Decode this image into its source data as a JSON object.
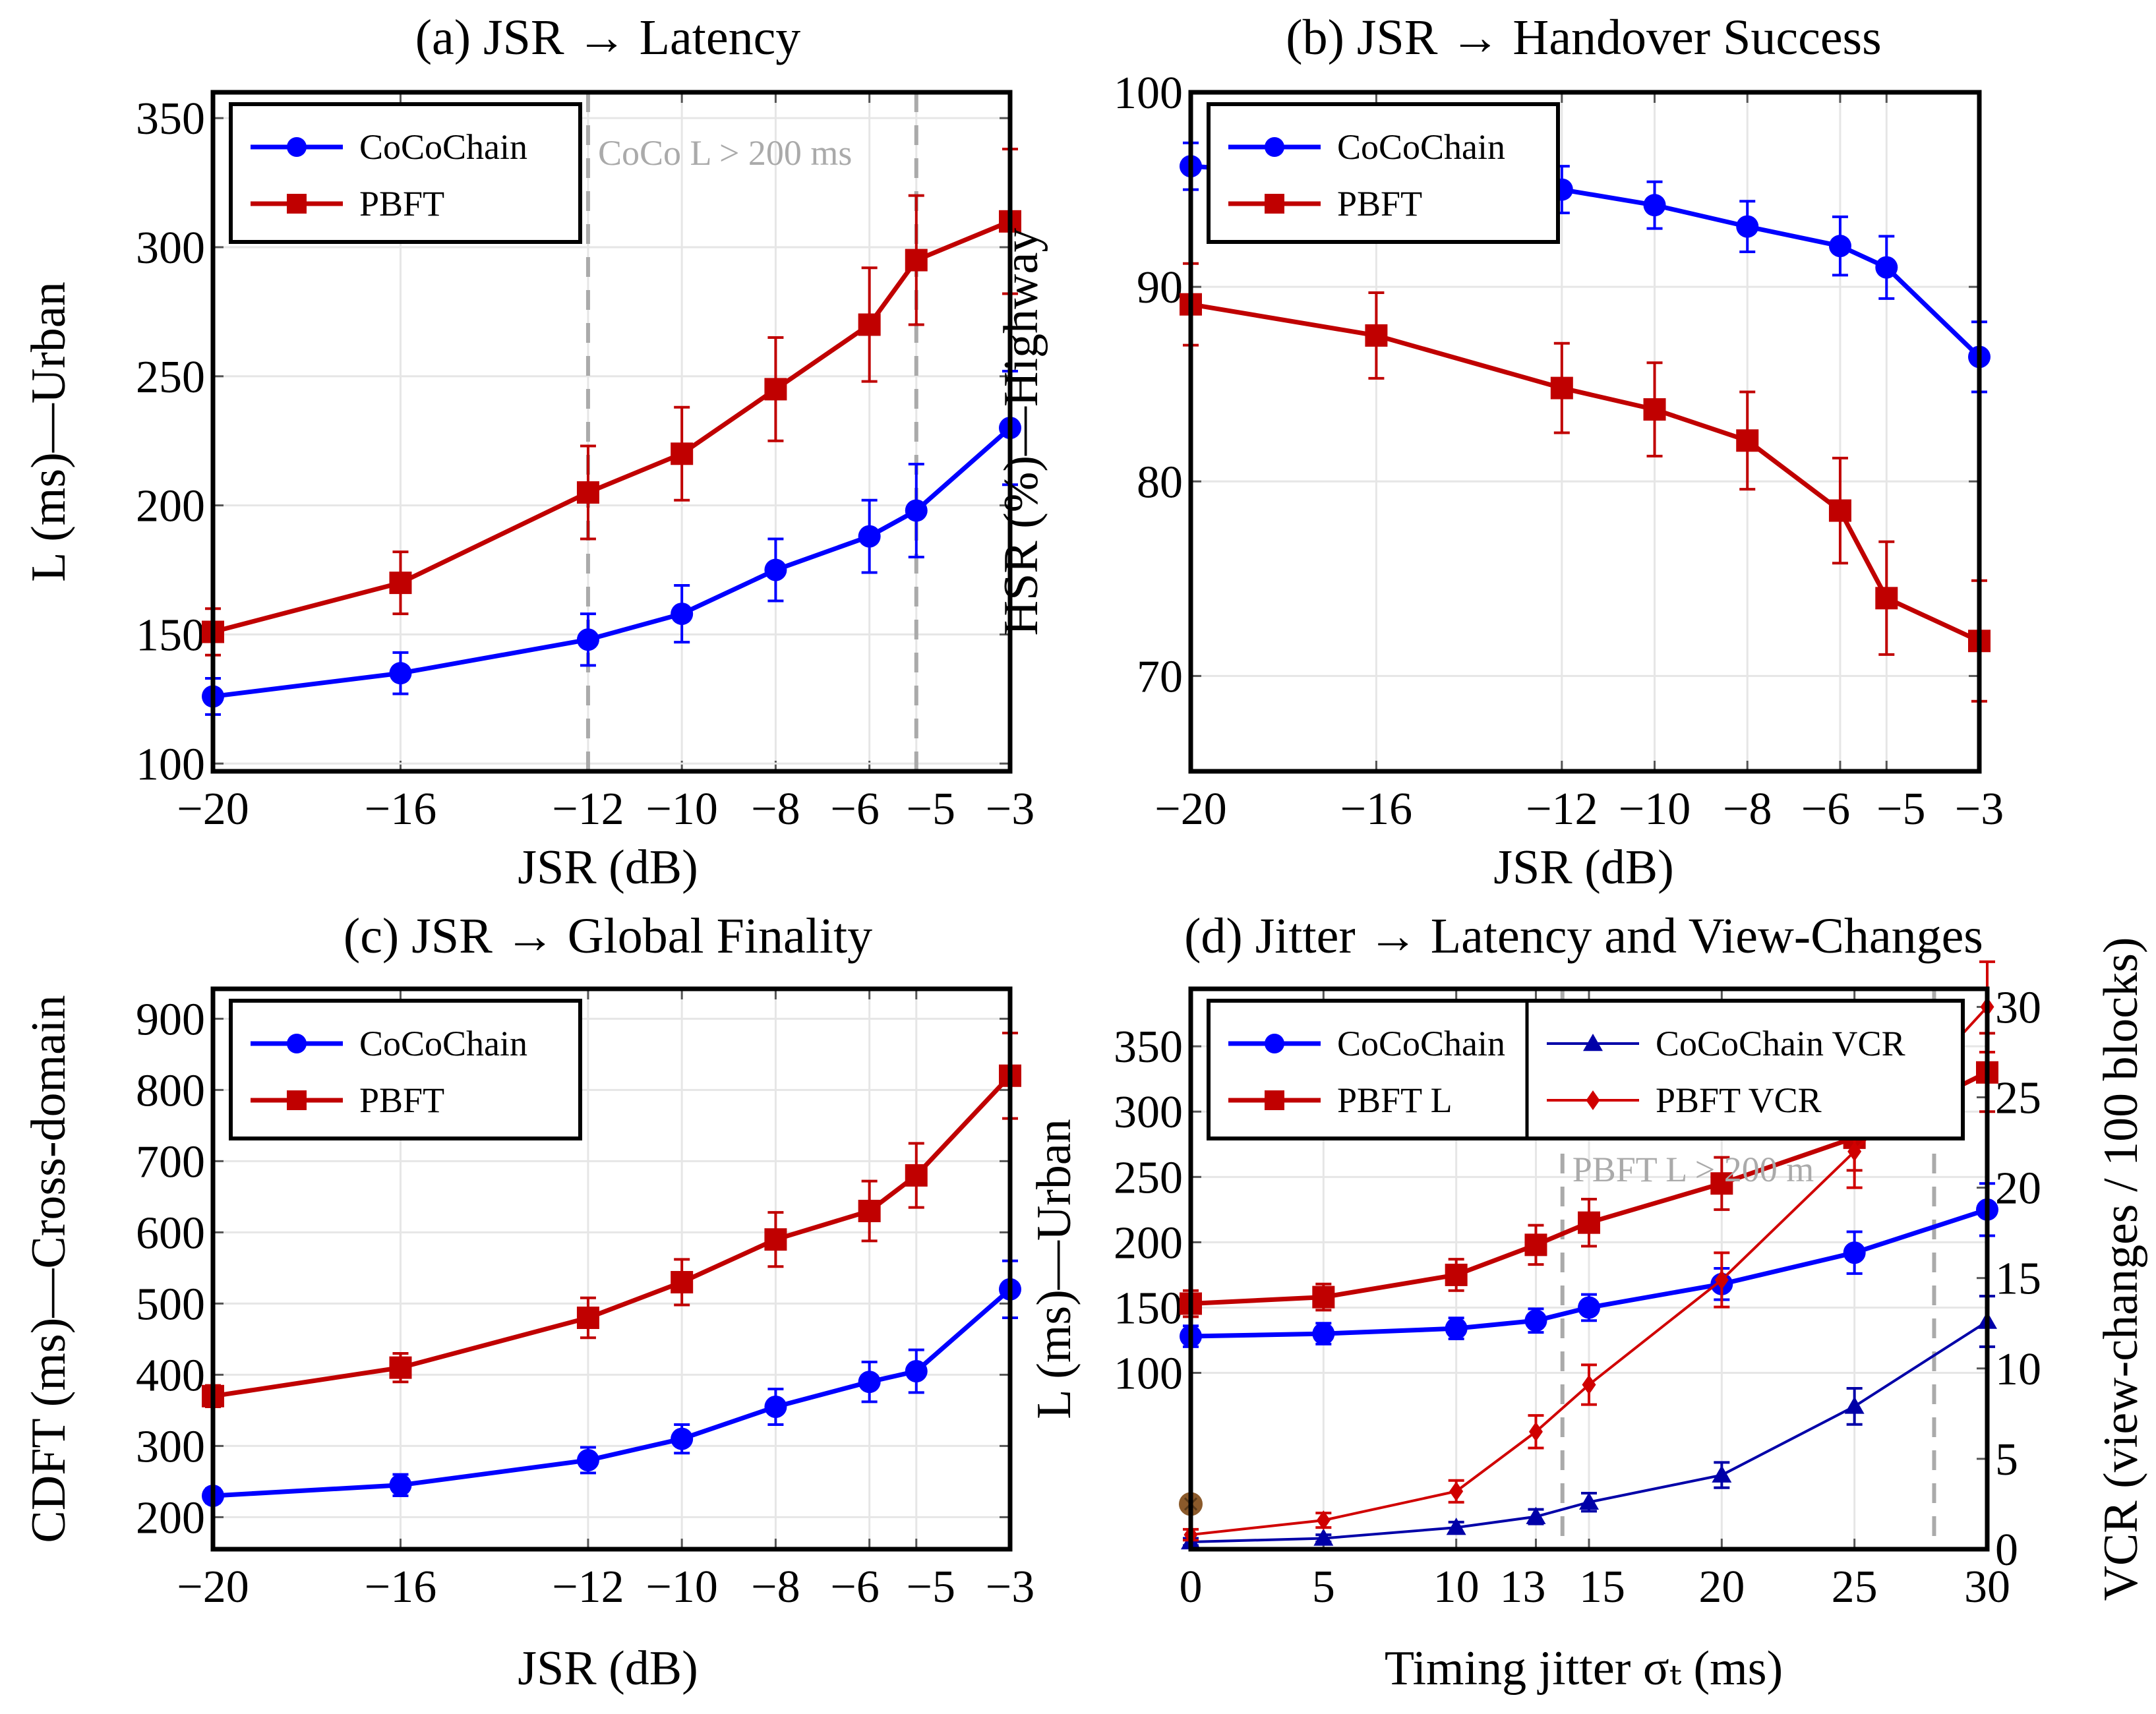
{
  "colors": {
    "coco": "#0000ff",
    "pbft": "#c00000",
    "coco_vcr": "#0000a8",
    "pbft_vcr": "#d00000",
    "grid": "#e6e6e6",
    "dash": "#aaaaaa",
    "marker_extra": "#8b5a2b"
  },
  "chart_data": [
    {
      "type": "line",
      "title": "(a) JSR → Latency",
      "xlabel": "JSR (dB)",
      "ylabel": "L (ms)—Urban",
      "xlim": [
        -20,
        -3
      ],
      "ylim": [
        97,
        360
      ],
      "xticks": [
        -20,
        -16,
        -12,
        -10,
        -8,
        -6,
        -5,
        -3
      ],
      "xtick_labels": [
        "−20",
        "−16",
        "−12",
        "−10",
        "−8",
        "−6",
        "−5",
        "−3"
      ],
      "yticks": [
        100,
        150,
        200,
        250,
        300,
        350
      ],
      "ytick_labels": [
        "100",
        "150",
        "200",
        "250",
        "300",
        "350"
      ],
      "grid": true,
      "legend": "top-left",
      "vlines": [
        -12,
        -5
      ],
      "annotation": "CoCo L > 200 ms",
      "x": [
        -20,
        -16,
        -12,
        -10,
        -8,
        -6,
        -5,
        -3
      ],
      "series": [
        {
          "name": "CoCoChain",
          "color_key": "coco",
          "marker": "circle",
          "values": [
            126,
            135,
            148,
            158,
            175,
            188,
            198,
            230
          ],
          "err": [
            7,
            8,
            10,
            11,
            12,
            14,
            18,
            22
          ]
        },
        {
          "name": "PBFT",
          "color_key": "pbft",
          "marker": "square",
          "values": [
            151,
            170,
            205,
            220,
            245,
            270,
            295,
            310
          ],
          "err": [
            9,
            12,
            18,
            18,
            20,
            22,
            25,
            28
          ]
        }
      ]
    },
    {
      "type": "line",
      "title": "(b) JSR → Handover Success",
      "xlabel": "JSR (dB)",
      "ylabel": "HSR (%)—Highway",
      "xlim": [
        -20,
        -3
      ],
      "ylim": [
        65.1,
        100
      ],
      "xticks": [
        -20,
        -16,
        -12,
        -10,
        -8,
        -6,
        -5,
        -3
      ],
      "xtick_labels": [
        "−20",
        "−16",
        "−12",
        "−10",
        "−8",
        "−6",
        "−5",
        "−3"
      ],
      "yticks": [
        70,
        80,
        90,
        100
      ],
      "ytick_labels": [
        "70",
        "80",
        "90",
        "100"
      ],
      "grid": true,
      "legend": "top-left",
      "x": [
        -20,
        -16,
        -12,
        -10,
        -8,
        -6,
        -5,
        -3
      ],
      "series": [
        {
          "name": "CoCoChain",
          "color_key": "coco",
          "marker": "circle",
          "values": [
            96.2,
            null,
            95.0,
            94.2,
            93.1,
            92.1,
            91.0,
            86.4
          ],
          "err": [
            1.2,
            null,
            1.2,
            1.2,
            1.3,
            1.5,
            1.6,
            1.8
          ]
        },
        {
          "name": "PBFT",
          "color_key": "pbft",
          "marker": "square",
          "values": [
            89.1,
            87.5,
            84.8,
            83.7,
            82.1,
            78.5,
            74.0,
            71.8
          ],
          "err": [
            2.1,
            2.2,
            2.3,
            2.4,
            2.5,
            2.7,
            2.9,
            3.1
          ]
        }
      ]
    },
    {
      "type": "line",
      "title": "(c) JSR → Global Finality",
      "xlabel": "JSR (dB)",
      "ylabel": "CDFT (ms)—Cross-domain",
      "xlim": [
        -20,
        -3
      ],
      "ylim": [
        155,
        942
      ],
      "xticks": [
        -20,
        -16,
        -12,
        -10,
        -8,
        -6,
        -5,
        -3
      ],
      "xtick_labels": [
        "−20",
        "−16",
        "−12",
        "−10",
        "−8",
        "−6",
        "−5",
        "−3"
      ],
      "yticks": [
        200,
        300,
        400,
        500,
        600,
        700,
        800,
        900
      ],
      "ytick_labels": [
        "200",
        "300",
        "400",
        "500",
        "600",
        "700",
        "800",
        "900"
      ],
      "grid": true,
      "legend": "top-left",
      "x": [
        -20,
        -16,
        -12,
        -10,
        -8,
        -6,
        -5,
        -3
      ],
      "series": [
        {
          "name": "CoCoChain",
          "color_key": "coco",
          "marker": "circle",
          "values": [
            230,
            245,
            280,
            310,
            355,
            390,
            405,
            520
          ],
          "err": [
            10,
            15,
            18,
            20,
            25,
            28,
            30,
            40
          ]
        },
        {
          "name": "PBFT",
          "color_key": "pbft",
          "marker": "square",
          "values": [
            370,
            410,
            480,
            530,
            590,
            630,
            680,
            820
          ],
          "err": [
            15,
            20,
            28,
            32,
            38,
            42,
            45,
            60
          ]
        }
      ]
    },
    {
      "type": "line",
      "title": "(d) Jitter → Latency and View-Changes",
      "xlabel": "Timing jitter σₜ (ms)",
      "ylabel": "L (ms)—Urban",
      "y2label": "VCR (view-changes / 100 blocks)",
      "xlim": [
        0,
        30
      ],
      "ylim": [
        -35,
        394
      ],
      "y2lim": [
        0,
        31
      ],
      "xticks": [
        0,
        5,
        10,
        13,
        15,
        20,
        25,
        30
      ],
      "xtick_labels": [
        "0",
        "5",
        "10",
        "13",
        "15",
        "20",
        "25",
        "30"
      ],
      "yticks": [
        100,
        150,
        200,
        250,
        300,
        350
      ],
      "ytick_labels": [
        "100",
        "150",
        "200",
        "250",
        "300",
        "350"
      ],
      "y2ticks": [
        0,
        5,
        10,
        15,
        20,
        25,
        30
      ],
      "y2tick_labels": [
        "0",
        "5",
        "10",
        "15",
        "20",
        "25",
        "30"
      ],
      "grid": true,
      "legend": "top-left, two columns",
      "vlines": [
        14,
        28
      ],
      "annotation": "PBFT L > 200 m",
      "extra_marker": {
        "x": 0,
        "y2": 2.5
      },
      "x": [
        0,
        5,
        10,
        13,
        15,
        20,
        25,
        30
      ],
      "series": [
        {
          "name": "CoCoChain",
          "color_key": "coco",
          "marker": "circle",
          "axis": "left",
          "values": [
            128,
            130,
            134,
            140,
            150,
            168,
            192,
            225
          ],
          "err": [
            8,
            8,
            8,
            9,
            10,
            12,
            16,
            20
          ]
        },
        {
          "name": "PBFT L",
          "color_key": "pbft",
          "marker": "square",
          "axis": "left",
          "values": [
            153,
            158,
            175,
            198,
            215,
            245,
            280,
            330
          ],
          "err": [
            10,
            10,
            12,
            15,
            18,
            20,
            25,
            30
          ]
        },
        {
          "name": "CoCoChain VCR",
          "color_key": "coco_vcr",
          "marker": "triangle",
          "axis": "right",
          "values": [
            0.4,
            0.6,
            1.2,
            1.8,
            2.6,
            4.1,
            7.9,
            12.6
          ],
          "err": [
            0.2,
            0.2,
            0.3,
            0.4,
            0.5,
            0.7,
            1.0,
            1.4
          ]
        },
        {
          "name": "PBFT VCR",
          "color_key": "pbft_vcr",
          "marker": "diamond",
          "axis": "right",
          "values": [
            0.8,
            1.6,
            3.2,
            6.5,
            9.1,
            14.9,
            22.0,
            30.0
          ],
          "err": [
            0.3,
            0.4,
            0.6,
            0.9,
            1.1,
            1.5,
            2.0,
            2.5
          ]
        }
      ]
    }
  ]
}
